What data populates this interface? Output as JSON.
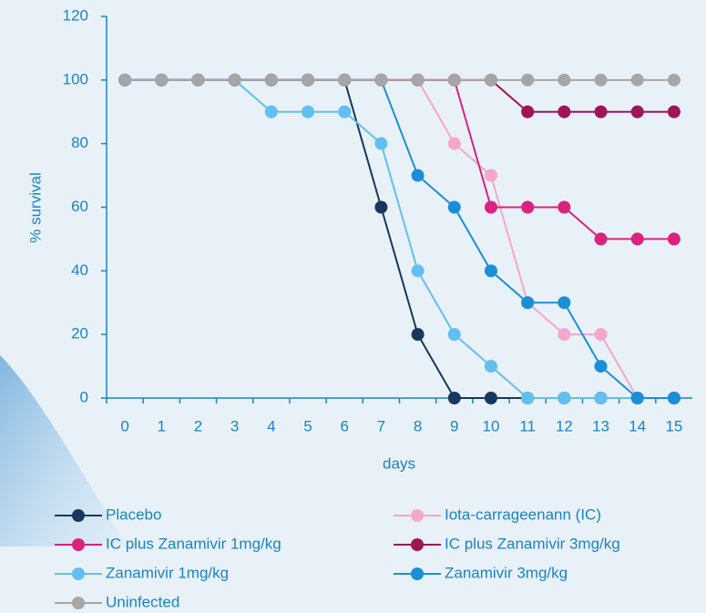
{
  "chart_data": {
    "type": "line",
    "x_label": "days",
    "y_label": "% survival",
    "x": [
      0,
      1,
      2,
      3,
      4,
      5,
      6,
      7,
      8,
      9,
      10,
      11,
      12,
      13,
      14,
      15
    ],
    "xlim": [
      -0.5,
      15.5
    ],
    "xticks": [
      0,
      1,
      2,
      3,
      4,
      5,
      6,
      7,
      8,
      9,
      10,
      11,
      12,
      13,
      14,
      15
    ],
    "ylim": [
      0,
      120
    ],
    "yticks": [
      0,
      20,
      40,
      60,
      80,
      100,
      120
    ],
    "series": [
      {
        "name": "Placebo",
        "color": "#17375e",
        "values": [
          100,
          100,
          100,
          100,
          100,
          100,
          100,
          60,
          20,
          0,
          0,
          0,
          0,
          0,
          0,
          0
        ]
      },
      {
        "name": "Iota-carrageenann (IC)",
        "color": "#f4a7cb",
        "values": [
          100,
          100,
          100,
          100,
          100,
          100,
          100,
          100,
          100,
          80,
          70,
          30,
          20,
          20,
          0,
          0
        ]
      },
      {
        "name": "IC plus Zanamivir 1mg/kg",
        "color": "#d9237f",
        "values": [
          100,
          100,
          100,
          100,
          100,
          100,
          100,
          100,
          100,
          100,
          60,
          60,
          60,
          50,
          50,
          50
        ]
      },
      {
        "name": "IC plus Zanamivir 3mg/kg",
        "color": "#a01557",
        "values": [
          100,
          100,
          100,
          100,
          100,
          100,
          100,
          100,
          100,
          100,
          100,
          90,
          90,
          90,
          90,
          90
        ]
      },
      {
        "name": "Zanamivir 1mg/kg",
        "color": "#62bff0",
        "values": [
          100,
          100,
          100,
          100,
          90,
          90,
          90,
          80,
          40,
          20,
          10,
          0,
          0,
          0,
          0,
          0
        ]
      },
      {
        "name": "Zanamivir 3mg/kg",
        "color": "#1a8fd8",
        "values": [
          100,
          100,
          100,
          100,
          100,
          100,
          100,
          100,
          70,
          60,
          40,
          30,
          30,
          10,
          0,
          0
        ]
      },
      {
        "name": "Uninfected",
        "color": "#a6a6a6",
        "values": [
          100,
          100,
          100,
          100,
          100,
          100,
          100,
          100,
          100,
          100,
          100,
          100,
          100,
          100,
          100,
          100
        ]
      }
    ]
  }
}
